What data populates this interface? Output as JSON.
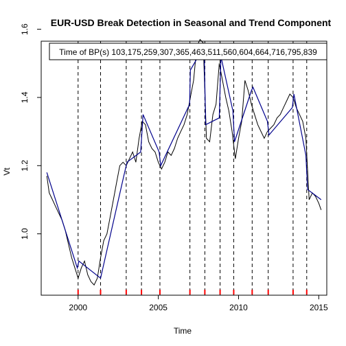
{
  "chart_data": {
    "type": "line",
    "title": "EUR-USD Break Detection in Seasonal and Trend Component",
    "xlabel": "Time",
    "ylabel": "Vt",
    "xlim": [
      1997.7,
      2015.5
    ],
    "ylim": [
      0.82,
      1.565
    ],
    "x_ticks": [
      2000,
      2005,
      2010,
      2015
    ],
    "y_ticks": [
      1.0,
      1.2,
      1.4,
      1.6
    ],
    "x_tick_labels": [
      "2000",
      "2005",
      "2010",
      "2015"
    ],
    "y_tick_labels": [
      "1.0",
      "1.2",
      "1.4",
      "1.6"
    ],
    "legend": {
      "position": "top",
      "text": "Time of BP(s) 103,175,259,307,365,463,511,560,604,664,716,795,839"
    },
    "break_times": [
      2000.0,
      2001.4,
      2003.0,
      2003.95,
      2005.1,
      2006.97,
      2007.9,
      2008.85,
      2009.7,
      2010.85,
      2011.85,
      2013.4,
      2014.25
    ],
    "series": [
      {
        "color": "#000000",
        "x": [
          1998.05,
          1998.2,
          1998.4,
          1998.6,
          1998.8,
          1999.0,
          1999.2,
          1999.4,
          1999.6,
          1999.8,
          2000.0,
          2000.2,
          2000.4,
          2000.6,
          2000.8,
          2001.0,
          2001.2,
          2001.4,
          2001.6,
          2001.8,
          2002.0,
          2002.2,
          2002.4,
          2002.6,
          2002.8,
          2003.0,
          2003.2,
          2003.4,
          2003.6,
          2003.8,
          2004.0,
          2004.2,
          2004.4,
          2004.6,
          2004.8,
          2005.0,
          2005.2,
          2005.4,
          2005.6,
          2005.8,
          2006.0,
          2006.2,
          2006.4,
          2006.6,
          2006.8,
          2007.0,
          2007.2,
          2007.4,
          2007.6,
          2007.8,
          2008.0,
          2008.2,
          2008.4,
          2008.6,
          2008.8,
          2009.0,
          2009.2,
          2009.4,
          2009.6,
          2009.8,
          2010.0,
          2010.2,
          2010.4,
          2010.6,
          2010.8,
          2011.0,
          2011.2,
          2011.4,
          2011.6,
          2011.8,
          2012.0,
          2012.2,
          2012.4,
          2012.6,
          2012.8,
          2013.0,
          2013.2,
          2013.4,
          2013.6,
          2013.8,
          2014.0,
          2014.2,
          2014.4,
          2014.6,
          2014.8,
          2015.0,
          2015.15
        ],
        "y": [
          1.17,
          1.12,
          1.1,
          1.08,
          1.06,
          1.04,
          1.01,
          0.97,
          0.93,
          0.9,
          0.87,
          0.9,
          0.92,
          0.88,
          0.86,
          0.85,
          0.87,
          0.93,
          0.98,
          1.0,
          1.05,
          1.1,
          1.15,
          1.2,
          1.21,
          1.2,
          1.22,
          1.24,
          1.21,
          1.28,
          1.33,
          1.32,
          1.27,
          1.25,
          1.24,
          1.21,
          1.19,
          1.21,
          1.24,
          1.23,
          1.25,
          1.28,
          1.3,
          1.32,
          1.35,
          1.4,
          1.45,
          1.55,
          1.57,
          1.56,
          1.28,
          1.27,
          1.35,
          1.38,
          1.5,
          1.45,
          1.4,
          1.36,
          1.3,
          1.22,
          1.28,
          1.33,
          1.45,
          1.42,
          1.38,
          1.35,
          1.32,
          1.3,
          1.28,
          1.3,
          1.31,
          1.32,
          1.34,
          1.35,
          1.37,
          1.39,
          1.41,
          1.4,
          1.37,
          1.35,
          1.33,
          1.28,
          1.1,
          1.12,
          1.11,
          1.09,
          1.07
        ]
      },
      {
        "color": "#00008B",
        "x": [
          1998.05,
          1999.95,
          2000.05,
          2001.4,
          2002.9,
          2003.05,
          2003.9,
          2004.05,
          2005.05,
          2005.15,
          2006.95,
          2007.0,
          2007.85,
          2007.95,
          2008.8,
          2008.9,
          2009.65,
          2009.75,
          2010.8,
          2010.9,
          2011.8,
          2011.9,
          2013.35,
          2013.45,
          2014.2,
          2014.3,
          2015.15
        ],
        "y": [
          1.18,
          0.9,
          0.92,
          0.87,
          1.18,
          1.21,
          1.24,
          1.35,
          1.24,
          1.2,
          1.38,
          1.48,
          1.55,
          1.32,
          1.34,
          1.52,
          1.36,
          1.27,
          1.42,
          1.43,
          1.33,
          1.29,
          1.37,
          1.41,
          1.23,
          1.13,
          1.1
        ]
      }
    ]
  }
}
